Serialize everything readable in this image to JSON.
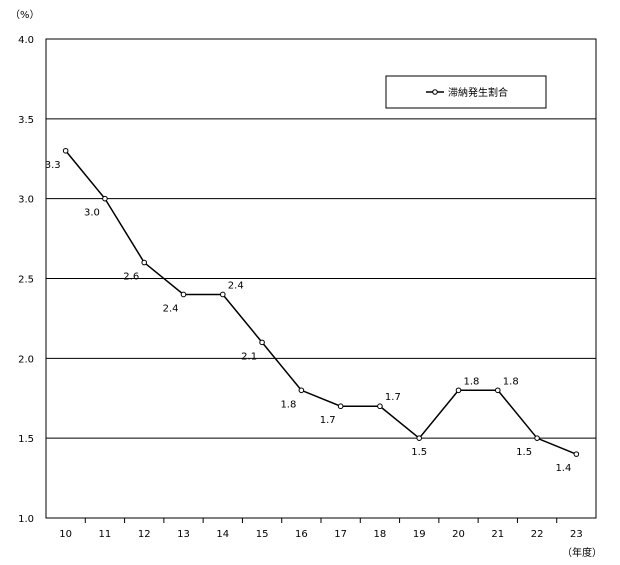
{
  "chart_data": {
    "type": "line",
    "y_unit_label": "（%）",
    "x_unit_label": "（年度）",
    "ylim": [
      1.0,
      4.0
    ],
    "y_ticks": [
      "1.0",
      "1.5",
      "2.0",
      "2.5",
      "3.0",
      "3.5",
      "4.0"
    ],
    "grid": true,
    "legend_position": "top-right",
    "categories": [
      "10",
      "11",
      "12",
      "13",
      "14",
      "15",
      "16",
      "17",
      "18",
      "19",
      "20",
      "21",
      "22",
      "23"
    ],
    "series": [
      {
        "name": "滞納発生割合",
        "values": [
          3.3,
          3.0,
          2.6,
          2.4,
          2.4,
          2.1,
          1.8,
          1.7,
          1.7,
          1.5,
          1.8,
          1.8,
          1.5,
          1.4
        ],
        "labels": [
          "3.3",
          "3.0",
          "2.6",
          "2.4",
          "2.4",
          "2.1",
          "1.8",
          "1.7",
          "1.7",
          "1.5",
          "1.8",
          "1.8",
          "1.5",
          "1.4"
        ]
      }
    ]
  }
}
